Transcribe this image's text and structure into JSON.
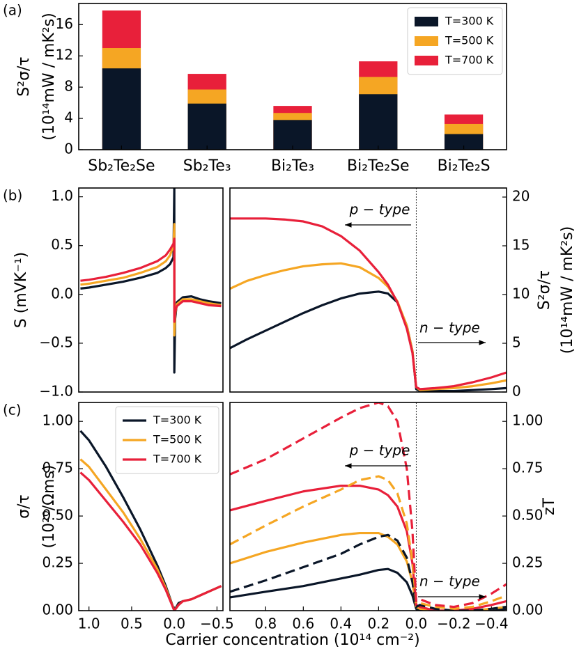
{
  "panel_labels": [
    "(a)",
    "(b)",
    "(c)"
  ],
  "xlabel": "Carrier concentration (10¹⁴ cm⁻²)",
  "chart_data": [
    {
      "type": "bar",
      "categories": [
        "Sb₂Te₂Se",
        "Sb₂Te₃",
        "Bi₂Te₃",
        "Bi₂Te₂Se",
        "Bi₂Te₂S"
      ],
      "series": [
        {
          "name": "T=300 K",
          "color": "#0a1628",
          "values": [
            10.4,
            5.9,
            3.8,
            7.1,
            2.0
          ]
        },
        {
          "name": "T=500 K",
          "color": "#f5a623",
          "values": [
            13.0,
            7.7,
            4.7,
            9.3,
            3.3
          ]
        },
        {
          "name": "T=700 K",
          "color": "#e8203a",
          "values": [
            17.8,
            9.7,
            5.6,
            11.3,
            4.5
          ]
        }
      ],
      "ylim": [
        0,
        18.7
      ],
      "yticks": [
        0,
        4,
        8,
        12,
        16
      ],
      "ylabel": [
        "S²σ/τ",
        "(10¹⁴mW / mK²s)"
      ],
      "legend": "upper right"
    },
    {
      "type": "line",
      "x": [
        1.1,
        1.0,
        0.8,
        0.6,
        0.4,
        0.2,
        0.1,
        0.05,
        0.01,
        0,
        0,
        -0.01,
        -0.03,
        -0.1,
        -0.2,
        -0.3,
        -0.4,
        -0.55
      ],
      "series": [
        {
          "color": "#0a1628",
          "values": [
            0.06,
            0.07,
            0.1,
            0.13,
            0.17,
            0.22,
            0.27,
            0.31,
            0.38,
            1.1,
            -0.8,
            -0.25,
            -0.08,
            -0.03,
            -0.02,
            -0.05,
            -0.07,
            -0.09
          ]
        },
        {
          "color": "#f5a623",
          "values": [
            0.1,
            0.11,
            0.14,
            0.17,
            0.22,
            0.28,
            0.34,
            0.4,
            0.5,
            0.72,
            -0.42,
            -0.2,
            -0.1,
            -0.05,
            -0.05,
            -0.07,
            -0.09,
            -0.11
          ]
        },
        {
          "color": "#e8203a",
          "values": [
            0.14,
            0.15,
            0.18,
            0.22,
            0.27,
            0.34,
            0.4,
            0.46,
            0.52,
            0.57,
            -0.28,
            -0.18,
            -0.12,
            -0.07,
            -0.07,
            -0.09,
            -0.11,
            -0.12
          ]
        }
      ],
      "xlim": [
        1.12,
        -0.57
      ],
      "ylim": [
        -1.0,
        1.09
      ],
      "yticks": [
        {
          "value": -1.0,
          "label": "−1.0"
        },
        {
          "value": -0.5,
          "label": "−0.5"
        },
        {
          "value": 0,
          "label": "0.0"
        },
        0.5,
        {
          "value": 1.0,
          "label": "1.0"
        }
      ],
      "ylabel": [
        "S (mVK⁻¹)"
      ]
    },
    {
      "type": "line",
      "x": [
        0.99,
        0.9,
        0.8,
        0.7,
        0.6,
        0.5,
        0.4,
        0.3,
        0.2,
        0.15,
        0.1,
        0.05,
        0.02,
        0.0,
        -0.02,
        -0.1,
        -0.2,
        -0.3,
        -0.4,
        -0.48
      ],
      "series": [
        {
          "color": "#0a1628",
          "values": [
            4.5,
            5.4,
            6.3,
            7.2,
            8.1,
            8.9,
            9.6,
            10.1,
            10.3,
            10.1,
            9.2,
            6.8,
            4.2,
            0.3,
            0.1,
            0.1,
            0.1,
            0.2,
            0.3,
            0.4
          ]
        },
        {
          "color": "#f5a623",
          "values": [
            10.6,
            11.4,
            12.0,
            12.5,
            12.9,
            13.1,
            13.2,
            12.8,
            11.7,
            10.8,
            9.3,
            6.8,
            4.2,
            0.5,
            0.2,
            0.3,
            0.4,
            0.6,
            0.9,
            1.2
          ]
        },
        {
          "color": "#e8203a",
          "values": [
            17.8,
            17.8,
            17.8,
            17.7,
            17.5,
            17.0,
            16.0,
            14.5,
            12.3,
            11.0,
            9.2,
            6.5,
            4.0,
            0.5,
            0.3,
            0.4,
            0.6,
            1.0,
            1.5,
            2.0
          ]
        }
      ],
      "xlim": [
        0.99,
        -0.48
      ],
      "ylim": [
        0,
        20.93
      ],
      "yticks": [
        0,
        5,
        10,
        15,
        20
      ],
      "y_axis_side": "right",
      "vline": 0,
      "ylabel": [
        "S²σ/τ",
        "(10¹⁴mW / mK²s)"
      ],
      "annotations": [
        "p − type",
        "n − type"
      ]
    },
    {
      "type": "line",
      "x": [
        1.1,
        1.0,
        0.8,
        0.6,
        0.4,
        0.2,
        0.1,
        0.0,
        -0.05,
        -0.1,
        -0.2,
        -0.3,
        -0.4,
        -0.55
      ],
      "series": [
        {
          "name": "T=300 K",
          "color": "#0a1628",
          "values": [
            0.95,
            0.9,
            0.76,
            0.6,
            0.43,
            0.24,
            0.13,
            0.0,
            0.04,
            0.05,
            0.06,
            0.08,
            0.1,
            0.13
          ]
        },
        {
          "name": "T=500 K",
          "color": "#f5a623",
          "values": [
            0.8,
            0.76,
            0.64,
            0.52,
            0.38,
            0.22,
            0.12,
            0.0,
            0.03,
            0.05,
            0.06,
            0.08,
            0.1,
            0.13
          ]
        },
        {
          "name": "T=700 K",
          "color": "#e8203a",
          "values": [
            0.73,
            0.69,
            0.58,
            0.47,
            0.35,
            0.2,
            0.11,
            0.0,
            0.03,
            0.05,
            0.06,
            0.08,
            0.1,
            0.13
          ]
        }
      ],
      "xlim": [
        1.12,
        -0.57
      ],
      "ylim": [
        0,
        1.1
      ],
      "xticks": [
        {
          "value": 1.0,
          "label": "1.0"
        },
        0.5,
        {
          "value": 0,
          "label": "0.0"
        },
        {
          "value": -0.5,
          "label": "−0.5"
        }
      ],
      "yticks": [
        {
          "value": 0,
          "label": "0.00"
        },
        0.25,
        {
          "value": 0.5,
          "label": "0.50"
        },
        0.75,
        {
          "value": 1.0,
          "label": "1.00"
        }
      ],
      "ylabel": [
        "σ/τ",
        "(10²⁰/Ωms)"
      ],
      "legend": "upper right"
    },
    {
      "type": "line",
      "x": [
        0.99,
        0.8,
        0.6,
        0.4,
        0.3,
        0.2,
        0.15,
        0.1,
        0.05,
        0.02,
        0,
        -0.02,
        -0.1,
        -0.2,
        -0.3,
        -0.4,
        -0.48
      ],
      "series": [
        {
          "color": "#0a1628",
          "linestyle": "solid",
          "values": [
            0.07,
            0.1,
            0.13,
            0.17,
            0.19,
            0.215,
            0.22,
            0.2,
            0.15,
            0.08,
            0.01,
            0,
            0,
            0,
            0,
            0,
            0.01
          ]
        },
        {
          "color": "#f5a623",
          "linestyle": "solid",
          "values": [
            0.25,
            0.31,
            0.36,
            0.4,
            0.41,
            0.41,
            0.39,
            0.35,
            0.26,
            0.15,
            0.02,
            0.01,
            0,
            0,
            0,
            0.01,
            0.02
          ]
        },
        {
          "color": "#e8203a",
          "linestyle": "solid",
          "values": [
            0.53,
            0.58,
            0.63,
            0.66,
            0.66,
            0.64,
            0.61,
            0.55,
            0.42,
            0.25,
            0.03,
            0.02,
            0,
            0,
            0.01,
            0.03,
            0.05
          ]
        },
        {
          "color": "#0a1628",
          "linestyle": "dashed",
          "values": [
            0.1,
            0.16,
            0.23,
            0.3,
            0.35,
            0.39,
            0.4,
            0.37,
            0.28,
            0.15,
            0.02,
            0.03,
            0.01,
            0,
            0,
            0.01,
            0.02
          ]
        },
        {
          "color": "#f5a623",
          "linestyle": "dashed",
          "values": [
            0.35,
            0.45,
            0.55,
            0.64,
            0.69,
            0.71,
            0.69,
            0.62,
            0.46,
            0.26,
            0.04,
            0.04,
            0.02,
            0.01,
            0.02,
            0.05,
            0.08
          ]
        },
        {
          "color": "#e8203a",
          "linestyle": "dashed",
          "values": [
            0.72,
            0.8,
            0.91,
            1.02,
            1.07,
            1.1,
            1.08,
            1.0,
            0.75,
            0.42,
            0.05,
            0.06,
            0.03,
            0.02,
            0.04,
            0.09,
            0.14
          ]
        }
      ],
      "xlim": [
        0.99,
        -0.48
      ],
      "ylim": [
        0,
        1.1
      ],
      "xticks": [
        0.8,
        0.6,
        0.4,
        0.2,
        {
          "value": 0,
          "label": "0.0"
        },
        {
          "value": -0.2,
          "label": "−0.2"
        },
        {
          "value": -0.4,
          "label": "−0.4"
        }
      ],
      "yticks": [
        {
          "value": 0,
          "label": "0.00"
        },
        0.25,
        {
          "value": 0.5,
          "label": "0.50"
        },
        0.75,
        {
          "value": 1.0,
          "label": "1.00"
        }
      ],
      "y_axis_side": "right",
      "vline": 0,
      "ylabel": [
        "zT"
      ],
      "annotations": [
        "p − type",
        "n − type"
      ]
    }
  ]
}
